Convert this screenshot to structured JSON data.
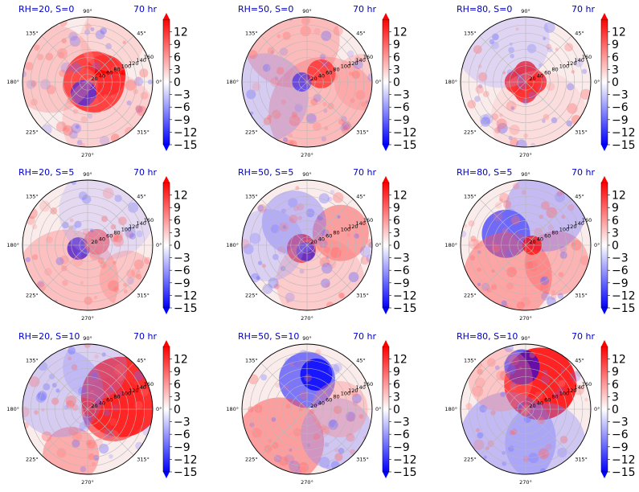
{
  "chart_data": {
    "type": "heatmap",
    "projection": "polar",
    "layout": "3 rows x 3 columns",
    "angular_ticks": [
      "90°",
      "45°",
      "0°",
      "315°",
      "270°",
      "225°",
      "180°",
      "135°"
    ],
    "radial_ticks": [
      "20",
      "40",
      "60",
      "80",
      "100",
      "120",
      "140",
      "160"
    ],
    "rlim": [
      0,
      160
    ],
    "colorbar": {
      "ticks": [
        "12",
        "9",
        "6",
        "3",
        "0",
        "−3",
        "−6",
        "−9",
        "−12",
        "−15"
      ],
      "range": [
        -15,
        15
      ],
      "extend": "both",
      "colors": {
        "low": "#0000ff",
        "mid": "#ffffff",
        "high": "#ff0000"
      }
    },
    "grid": true,
    "panels": [
      {
        "title": "RH=20, S=0",
        "time": "70 hr"
      },
      {
        "title": "RH=50, S=0",
        "time": "70 hr"
      },
      {
        "title": "RH=80, S=0",
        "time": "70 hr"
      },
      {
        "title": "RH=20, S=5",
        "time": "70 hr"
      },
      {
        "title": "RH=50, S=5",
        "time": "70 hr"
      },
      {
        "title": "RH=80, S=5",
        "time": "70 hr"
      },
      {
        "title": "RH=20, S=10",
        "time": "70 hr"
      },
      {
        "title": "RH=50, S=10",
        "time": "70 hr"
      },
      {
        "title": "RH=80, S=10",
        "time": "70 hr"
      }
    ]
  }
}
